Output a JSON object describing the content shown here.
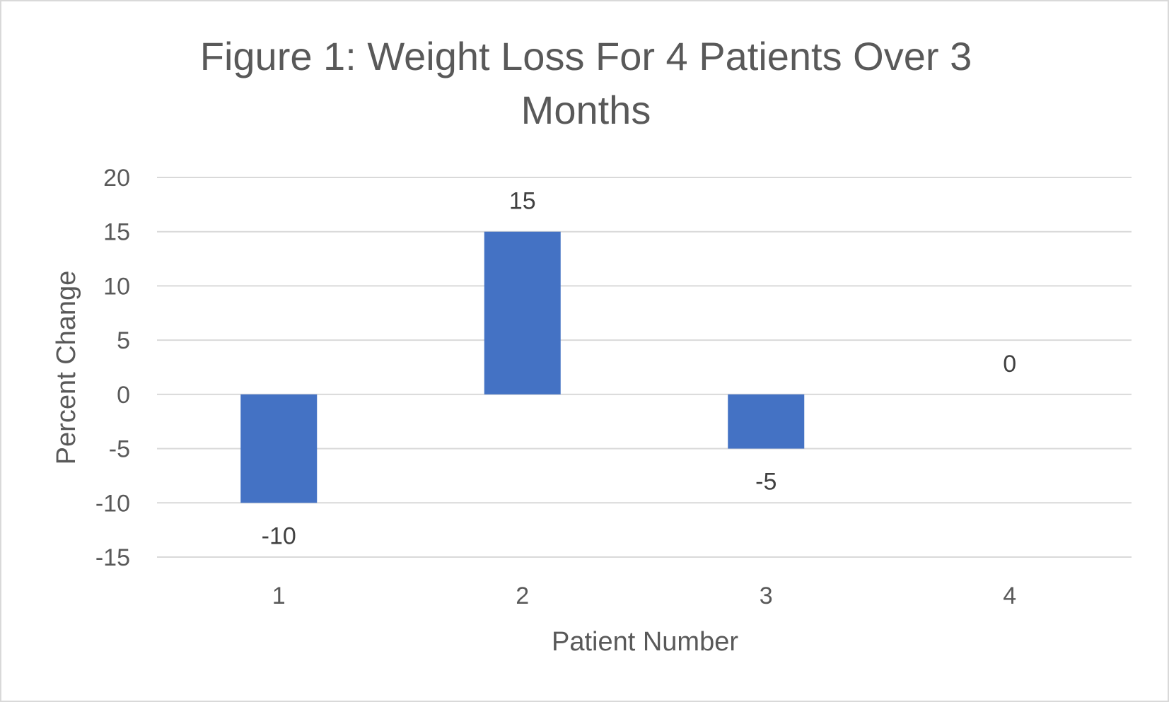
{
  "chart_data": {
    "type": "bar",
    "title": "Figure 1: Weight Loss For 4 Patients Over 3 Months",
    "xlabel": "Patient Number",
    "ylabel": "Percent Change",
    "categories": [
      "1",
      "2",
      "3",
      "4"
    ],
    "values": [
      -10,
      15,
      -5,
      0
    ],
    "data_labels": [
      "-10",
      "15",
      "-5",
      "0"
    ],
    "ylim": [
      -15,
      20
    ],
    "yticks": [
      20,
      15,
      10,
      5,
      0,
      -5,
      -10,
      -15
    ],
    "ytick_labels": [
      "20",
      "15",
      "10",
      "5",
      "0",
      "-5",
      "-10",
      "-15"
    ],
    "grid": true,
    "legend": "none",
    "bar_color": "#4472c4"
  }
}
